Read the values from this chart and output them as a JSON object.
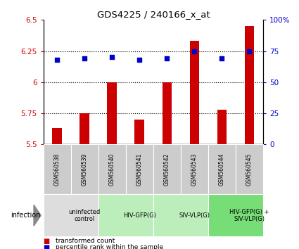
{
  "title": "GDS4225 / 240166_x_at",
  "samples": [
    "GSM560538",
    "GSM560539",
    "GSM560540",
    "GSM560541",
    "GSM560542",
    "GSM560543",
    "GSM560544",
    "GSM560545"
  ],
  "transformed_counts": [
    5.63,
    5.75,
    6.0,
    5.7,
    6.0,
    6.33,
    5.78,
    6.45
  ],
  "percentile_ranks": [
    68,
    69,
    70,
    68,
    69,
    75,
    69,
    75
  ],
  "bar_color": "#cc0000",
  "dot_color": "#0000cc",
  "ylim_left": [
    5.5,
    6.5
  ],
  "ylim_right": [
    0,
    100
  ],
  "yticks_left": [
    5.5,
    5.75,
    6.0,
    6.25,
    6.5
  ],
  "yticks_right": [
    0,
    25,
    50,
    75,
    100
  ],
  "ytick_labels_left": [
    "5.5",
    "5.75",
    "6",
    "6.25",
    "6.5"
  ],
  "ytick_labels_right": [
    "0",
    "25",
    "50",
    "75",
    "100%"
  ],
  "hgrid_values": [
    5.75,
    6.0,
    6.25
  ],
  "groups": [
    {
      "label": "uninfected\ncontrol",
      "start": 0,
      "end": 2,
      "color": "#dddddd"
    },
    {
      "label": "HIV-GFP(G)",
      "start": 2,
      "end": 4,
      "color": "#bbeebb"
    },
    {
      "label": "SIV-VLP(G)",
      "start": 4,
      "end": 6,
      "color": "#bbeebb"
    },
    {
      "label": "HIV-GFP(G) +\nSIV-VLP(G)",
      "start": 6,
      "end": 8,
      "color": "#77dd77"
    }
  ],
  "infection_label": "infection",
  "legend_bar_label": "transformed count",
  "legend_dot_label": "percentile rank within the sample",
  "bar_width": 0.35,
  "sample_box_color": "#cccccc",
  "fig_bg": "#ffffff"
}
